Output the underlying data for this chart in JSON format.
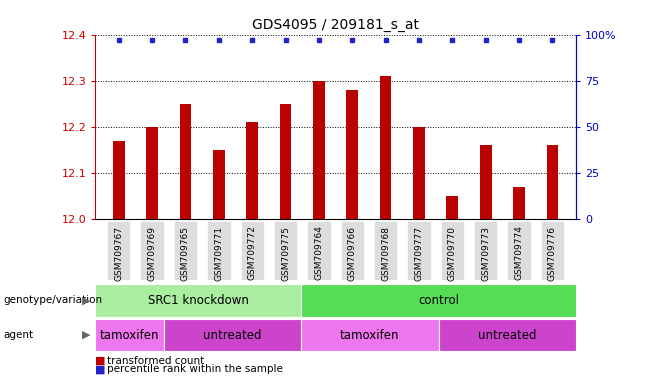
{
  "title": "GDS4095 / 209181_s_at",
  "samples": [
    "GSM709767",
    "GSM709769",
    "GSM709765",
    "GSM709771",
    "GSM709772",
    "GSM709775",
    "GSM709764",
    "GSM709766",
    "GSM709768",
    "GSM709777",
    "GSM709770",
    "GSM709773",
    "GSM709774",
    "GSM709776"
  ],
  "bar_values": [
    12.17,
    12.2,
    12.25,
    12.15,
    12.21,
    12.25,
    12.3,
    12.28,
    12.31,
    12.2,
    12.05,
    12.16,
    12.07,
    12.16
  ],
  "percentile_values": [
    100,
    100,
    100,
    100,
    100,
    100,
    100,
    100,
    100,
    100,
    100,
    100,
    100,
    100
  ],
  "bar_color": "#bb0000",
  "percentile_color": "#2222cc",
  "ylim_left": [
    12.0,
    12.4
  ],
  "ylim_right": [
    0,
    100
  ],
  "yticks_left": [
    12.0,
    12.1,
    12.2,
    12.3,
    12.4
  ],
  "yticks_right": [
    0,
    25,
    50,
    75,
    100
  ],
  "genotype_groups": [
    {
      "label": "SRC1 knockdown",
      "start": 0,
      "end": 6,
      "color": "#aaeea0"
    },
    {
      "label": "control",
      "start": 6,
      "end": 14,
      "color": "#55dd55"
    }
  ],
  "agent_groups": [
    {
      "label": "tamoxifen",
      "start": 0,
      "end": 2,
      "color": "#ee77ee"
    },
    {
      "label": "untreated",
      "start": 2,
      "end": 6,
      "color": "#cc44cc"
    },
    {
      "label": "tamoxifen",
      "start": 6,
      "end": 10,
      "color": "#ee77ee"
    },
    {
      "label": "untreated",
      "start": 10,
      "end": 14,
      "color": "#cc44cc"
    }
  ],
  "legend_items": [
    {
      "label": "transformed count",
      "color": "#bb0000"
    },
    {
      "label": "percentile rank within the sample",
      "color": "#2222cc"
    }
  ],
  "left_axis_color": "#cc0000",
  "right_axis_color": "#0000cc"
}
